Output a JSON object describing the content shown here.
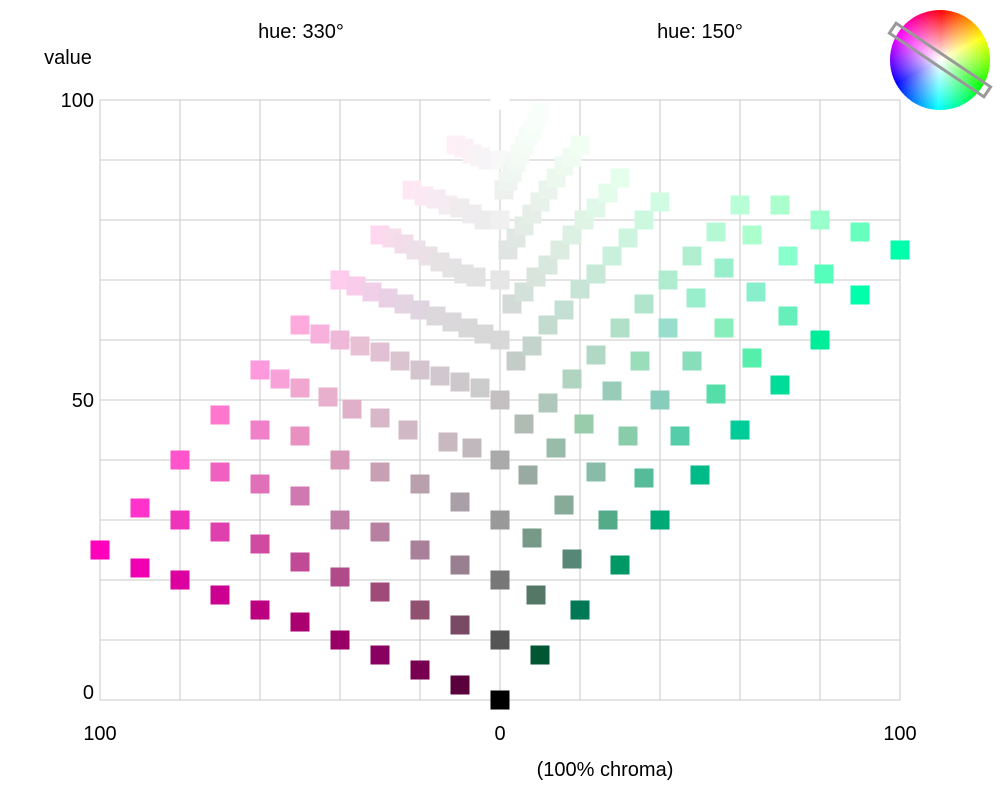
{
  "chart_data": {
    "type": "scatter",
    "left_hue_label": "hue: 330°",
    "right_hue_label": "hue: 150°",
    "ylabel": "value",
    "xlabel": "(100% chroma)",
    "x_tick_labels": [
      {
        "value": -100,
        "label": "100"
      },
      {
        "value": 0,
        "label": "0"
      },
      {
        "value": 100,
        "label": "100"
      }
    ],
    "y_tick_labels": [
      {
        "value": 0,
        "label": "0"
      },
      {
        "value": 50,
        "label": "50"
      },
      {
        "value": 100,
        "label": "100"
      }
    ],
    "xlim": [
      -100,
      100
    ],
    "ylim": [
      0,
      100
    ],
    "grid": true,
    "hue_wheel": {
      "position": "top-right",
      "selected_hues": [
        330,
        150
      ]
    },
    "series": [
      {
        "hue": 330,
        "points": [
          {
            "x": -100,
            "y": 25,
            "color": "#ff00bb"
          },
          {
            "x": -90,
            "y": 22,
            "color": "#f000b0"
          },
          {
            "x": -80,
            "y": 20,
            "color": "#dd00a0"
          },
          {
            "x": -70,
            "y": 17.5,
            "color": "#cc0090"
          },
          {
            "x": -60,
            "y": 15,
            "color": "#bb0080"
          },
          {
            "x": -50,
            "y": 13,
            "color": "#aa0070"
          },
          {
            "x": -40,
            "y": 10,
            "color": "#990066"
          },
          {
            "x": -30,
            "y": 7.5,
            "color": "#880060"
          },
          {
            "x": -20,
            "y": 5,
            "color": "#770050"
          },
          {
            "x": -10,
            "y": 2.5,
            "color": "#5a003c"
          },
          {
            "x": -90,
            "y": 32,
            "color": "#ff33cc"
          },
          {
            "x": -80,
            "y": 30,
            "color": "#f033bb"
          },
          {
            "x": -70,
            "y": 28,
            "color": "#e040ad"
          },
          {
            "x": -60,
            "y": 26,
            "color": "#d04aa0"
          },
          {
            "x": -50,
            "y": 23,
            "color": "#c04a95"
          },
          {
            "x": -40,
            "y": 20.5,
            "color": "#b04a88"
          },
          {
            "x": -30,
            "y": 18,
            "color": "#a04a7a"
          },
          {
            "x": -20,
            "y": 15,
            "color": "#905070"
          },
          {
            "x": -10,
            "y": 12.5,
            "color": "#7a4a65"
          },
          {
            "x": -80,
            "y": 40,
            "color": "#ff55cc"
          },
          {
            "x": -70,
            "y": 38,
            "color": "#f060c0"
          },
          {
            "x": -60,
            "y": 36,
            "color": "#e070b8"
          },
          {
            "x": -50,
            "y": 34,
            "color": "#d078b0"
          },
          {
            "x": -40,
            "y": 30,
            "color": "#c080a8"
          },
          {
            "x": -30,
            "y": 28,
            "color": "#b880a0"
          },
          {
            "x": -20,
            "y": 25,
            "color": "#a8809a"
          },
          {
            "x": -10,
            "y": 22.5,
            "color": "#988090"
          },
          {
            "x": -70,
            "y": 47.5,
            "color": "#ff77cc"
          },
          {
            "x": -60,
            "y": 45,
            "color": "#f080c8"
          },
          {
            "x": -50,
            "y": 44,
            "color": "#e890c0"
          },
          {
            "x": -40,
            "y": 40,
            "color": "#d898b8"
          },
          {
            "x": -30,
            "y": 38,
            "color": "#c8a0b4"
          },
          {
            "x": -20,
            "y": 36,
            "color": "#b8a0ac"
          },
          {
            "x": -10,
            "y": 33,
            "color": "#a8a0a6"
          },
          {
            "x": -60,
            "y": 55,
            "color": "#ff99dd"
          },
          {
            "x": -55,
            "y": 53.5,
            "color": "#f8a0d8"
          },
          {
            "x": -50,
            "y": 52,
            "color": "#f0a8d0"
          },
          {
            "x": -43,
            "y": 50.5,
            "color": "#e8b0cc"
          },
          {
            "x": -37,
            "y": 48.5,
            "color": "#e0b0c8"
          },
          {
            "x": -30,
            "y": 47,
            "color": "#d8b8c8"
          },
          {
            "x": -23,
            "y": 45,
            "color": "#d0b8c4"
          },
          {
            "x": -13,
            "y": 43,
            "color": "#c8b8c0"
          },
          {
            "x": -7,
            "y": 42,
            "color": "#c0b8bc"
          },
          {
            "x": -50,
            "y": 62.5,
            "color": "#ffaadd"
          },
          {
            "x": -45,
            "y": 61,
            "color": "#f8b0dc"
          },
          {
            "x": -40,
            "y": 60,
            "color": "#f0b8d8"
          },
          {
            "x": -35,
            "y": 59,
            "color": "#e8c0d4"
          },
          {
            "x": -30,
            "y": 58,
            "color": "#e0c0d2"
          },
          {
            "x": -25,
            "y": 56.5,
            "color": "#dac4d0"
          },
          {
            "x": -20,
            "y": 55,
            "color": "#d4c4ce"
          },
          {
            "x": -15,
            "y": 54,
            "color": "#d0c8ce"
          },
          {
            "x": -10,
            "y": 53,
            "color": "#ccc8cc"
          },
          {
            "x": -5,
            "y": 52,
            "color": "#cccccc"
          },
          {
            "x": -40,
            "y": 70,
            "color": "#ffccee"
          },
          {
            "x": -36,
            "y": 69,
            "color": "#f8ccea"
          },
          {
            "x": -32,
            "y": 68,
            "color": "#f0d0e8"
          },
          {
            "x": -28,
            "y": 67,
            "color": "#ead0e4"
          },
          {
            "x": -24,
            "y": 66,
            "color": "#e4d4e2"
          },
          {
            "x": -20,
            "y": 65,
            "color": "#e0d4e0"
          },
          {
            "x": -16,
            "y": 64,
            "color": "#dcd8dc"
          },
          {
            "x": -12,
            "y": 63,
            "color": "#dad8da"
          },
          {
            "x": -8,
            "y": 62,
            "color": "#d8d8d8"
          },
          {
            "x": -4,
            "y": 61,
            "color": "#d8d8d8"
          },
          {
            "x": -30,
            "y": 77.5,
            "color": "#ffd8f0"
          },
          {
            "x": -27,
            "y": 77,
            "color": "#f8dcec"
          },
          {
            "x": -24,
            "y": 76,
            "color": "#f2dcea"
          },
          {
            "x": -21,
            "y": 75,
            "color": "#eee0e8"
          },
          {
            "x": -18,
            "y": 74,
            "color": "#eae0e6"
          },
          {
            "x": -15,
            "y": 73,
            "color": "#e6e2e4"
          },
          {
            "x": -12,
            "y": 72,
            "color": "#e4e2e4"
          },
          {
            "x": -9,
            "y": 71,
            "color": "#e2e2e2"
          },
          {
            "x": -6,
            "y": 70.5,
            "color": "#e2e2e2"
          },
          {
            "x": -22,
            "y": 85,
            "color": "#ffe8f4"
          },
          {
            "x": -19,
            "y": 84,
            "color": "#fce8f2"
          },
          {
            "x": -16,
            "y": 83.5,
            "color": "#f8eaf2"
          },
          {
            "x": -13,
            "y": 82.5,
            "color": "#f4ecf0"
          },
          {
            "x": -10,
            "y": 82,
            "color": "#f0ecee"
          },
          {
            "x": -7,
            "y": 81,
            "color": "#eeecee"
          },
          {
            "x": -4,
            "y": 80,
            "color": "#ececec"
          },
          {
            "x": -11,
            "y": 92.5,
            "color": "#fff0f8"
          },
          {
            "x": -9,
            "y": 92,
            "color": "#fcf0f6"
          },
          {
            "x": -7,
            "y": 91,
            "color": "#faf2f6"
          },
          {
            "x": -5,
            "y": 90.5,
            "color": "#f8f4f6"
          },
          {
            "x": -3,
            "y": 90,
            "color": "#f6f4f6"
          },
          {
            "x": 0,
            "y": 100,
            "color": "#ffffff"
          }
        ]
      },
      {
        "hue": 0,
        "points": [
          {
            "x": 0,
            "y": 0,
            "color": "#000000"
          },
          {
            "x": 0,
            "y": 10,
            "color": "#555555"
          },
          {
            "x": 0,
            "y": 20,
            "color": "#777777"
          },
          {
            "x": 0,
            "y": 30,
            "color": "#999999"
          },
          {
            "x": 0,
            "y": 40,
            "color": "#aaaaaa"
          },
          {
            "x": 0,
            "y": 50,
            "color": "#c4c0c2"
          },
          {
            "x": 0,
            "y": 60,
            "color": "#d8d8d8"
          },
          {
            "x": 0,
            "y": 70,
            "color": "#e6e6e6"
          },
          {
            "x": 0,
            "y": 80,
            "color": "#f0f0f0"
          },
          {
            "x": 0,
            "y": 90,
            "color": "#f8f8f8"
          }
        ]
      },
      {
        "hue": 150,
        "points": [
          {
            "x": 10,
            "y": 7.5,
            "color": "#005533"
          },
          {
            "x": 20,
            "y": 15,
            "color": "#007755"
          },
          {
            "x": 30,
            "y": 22.5,
            "color": "#009966"
          },
          {
            "x": 40,
            "y": 30,
            "color": "#00aa77"
          },
          {
            "x": 50,
            "y": 37.5,
            "color": "#00bb88"
          },
          {
            "x": 60,
            "y": 45,
            "color": "#00cc99"
          },
          {
            "x": 70,
            "y": 52.5,
            "color": "#00dd99"
          },
          {
            "x": 80,
            "y": 60,
            "color": "#00ee99"
          },
          {
            "x": 90,
            "y": 67.5,
            "color": "#00ffaa"
          },
          {
            "x": 100,
            "y": 75,
            "color": "#00ffaa"
          },
          {
            "x": 9,
            "y": 17.5,
            "color": "#557766"
          },
          {
            "x": 18,
            "y": 23.5,
            "color": "#558877"
          },
          {
            "x": 27,
            "y": 30,
            "color": "#55aa88"
          },
          {
            "x": 36,
            "y": 37,
            "color": "#55bb99"
          },
          {
            "x": 45,
            "y": 44,
            "color": "#55ccaa"
          },
          {
            "x": 54,
            "y": 51,
            "color": "#55ddaa"
          },
          {
            "x": 63,
            "y": 57,
            "color": "#55eeaa"
          },
          {
            "x": 72,
            "y": 64,
            "color": "#66eebb"
          },
          {
            "x": 81,
            "y": 71,
            "color": "#55ffbb"
          },
          {
            "x": 90,
            "y": 78,
            "color": "#66ffbb"
          },
          {
            "x": 8,
            "y": 27,
            "color": "#779988"
          },
          {
            "x": 16,
            "y": 32.5,
            "color": "#88aa99"
          },
          {
            "x": 24,
            "y": 38,
            "color": "#88bba8"
          },
          {
            "x": 32,
            "y": 44,
            "color": "#88ccaa"
          },
          {
            "x": 40,
            "y": 50,
            "color": "#88ccbb"
          },
          {
            "x": 48,
            "y": 56.5,
            "color": "#88ddbb"
          },
          {
            "x": 56,
            "y": 62,
            "color": "#88eebb"
          },
          {
            "x": 64,
            "y": 68,
            "color": "#88eecc"
          },
          {
            "x": 72,
            "y": 74,
            "color": "#88ffcc"
          },
          {
            "x": 80,
            "y": 80,
            "color": "#99ffcc"
          },
          {
            "x": 7,
            "y": 37.5,
            "color": "#99aaa0"
          },
          {
            "x": 14,
            "y": 42,
            "color": "#99bbaa"
          },
          {
            "x": 21,
            "y": 46,
            "color": "#99ccaa"
          },
          {
            "x": 28,
            "y": 51.5,
            "color": "#99ccb8"
          },
          {
            "x": 35,
            "y": 56.5,
            "color": "#99ddbb"
          },
          {
            "x": 42,
            "y": 62,
            "color": "#99ddcc"
          },
          {
            "x": 49,
            "y": 67,
            "color": "#99eecc"
          },
          {
            "x": 56,
            "y": 72,
            "color": "#99eecc"
          },
          {
            "x": 63,
            "y": 77.5,
            "color": "#aaffcc"
          },
          {
            "x": 70,
            "y": 82.5,
            "color": "#aaffcc"
          },
          {
            "x": 6,
            "y": 46,
            "color": "#b0bbb4"
          },
          {
            "x": 12,
            "y": 49.5,
            "color": "#b0c8bb"
          },
          {
            "x": 18,
            "y": 53.5,
            "color": "#b0d4c0"
          },
          {
            "x": 24,
            "y": 57.5,
            "color": "#b0d8c4"
          },
          {
            "x": 30,
            "y": 62,
            "color": "#b0e0c8"
          },
          {
            "x": 36,
            "y": 66,
            "color": "#b0e4cc"
          },
          {
            "x": 42,
            "y": 70,
            "color": "#b0eccf"
          },
          {
            "x": 48,
            "y": 74,
            "color": "#b0f0d0"
          },
          {
            "x": 54,
            "y": 78,
            "color": "#b4f8d4"
          },
          {
            "x": 60,
            "y": 82.5,
            "color": "#b8ffd8"
          },
          {
            "x": 4,
            "y": 56.5,
            "color": "#c4ccc8"
          },
          {
            "x": 8,
            "y": 59,
            "color": "#c4d4cc"
          },
          {
            "x": 12,
            "y": 62.5,
            "color": "#c4dcd0"
          },
          {
            "x": 16,
            "y": 65,
            "color": "#c4e0d4"
          },
          {
            "x": 20,
            "y": 68.5,
            "color": "#c8e4d6"
          },
          {
            "x": 24,
            "y": 71,
            "color": "#c8e8d8"
          },
          {
            "x": 28,
            "y": 74,
            "color": "#c8f0dc"
          },
          {
            "x": 32,
            "y": 77,
            "color": "#ccf4de"
          },
          {
            "x": 36,
            "y": 80,
            "color": "#ccf8e0"
          },
          {
            "x": 40,
            "y": 83,
            "color": "#d0fce4"
          },
          {
            "x": 3,
            "y": 66,
            "color": "#d4dad8"
          },
          {
            "x": 6,
            "y": 68,
            "color": "#d4e0da"
          },
          {
            "x": 9,
            "y": 70.5,
            "color": "#d8e4dc"
          },
          {
            "x": 12,
            "y": 72.5,
            "color": "#d8e8de"
          },
          {
            "x": 15,
            "y": 75,
            "color": "#dcece0"
          },
          {
            "x": 18,
            "y": 77.5,
            "color": "#dcf0e4"
          },
          {
            "x": 21,
            "y": 80,
            "color": "#e0f4e6"
          },
          {
            "x": 24,
            "y": 82,
            "color": "#e0f8e8"
          },
          {
            "x": 27,
            "y": 84.5,
            "color": "#e4fcec"
          },
          {
            "x": 30,
            "y": 87,
            "color": "#e4ffec"
          },
          {
            "x": 2,
            "y": 75,
            "color": "#e0e4e2"
          },
          {
            "x": 4,
            "y": 77,
            "color": "#e0e8e4"
          },
          {
            "x": 6,
            "y": 79,
            "color": "#e4ece6"
          },
          {
            "x": 8,
            "y": 81,
            "color": "#e6eee8"
          },
          {
            "x": 10,
            "y": 83,
            "color": "#e8f2ea"
          },
          {
            "x": 12,
            "y": 85,
            "color": "#eaf4ec"
          },
          {
            "x": 14,
            "y": 87,
            "color": "#ecf8ee"
          },
          {
            "x": 16,
            "y": 89,
            "color": "#eefaf0"
          },
          {
            "x": 18,
            "y": 90.5,
            "color": "#f0fcf2"
          },
          {
            "x": 20,
            "y": 92.5,
            "color": "#f0fff2"
          },
          {
            "x": 1,
            "y": 85,
            "color": "#eef0ee"
          },
          {
            "x": 2,
            "y": 86.5,
            "color": "#eef4f0"
          },
          {
            "x": 3,
            "y": 88,
            "color": "#f0f6f2"
          },
          {
            "x": 4,
            "y": 89.5,
            "color": "#f2f8f4"
          },
          {
            "x": 5,
            "y": 91,
            "color": "#f4faf4"
          },
          {
            "x": 6,
            "y": 92.5,
            "color": "#f4fcf6"
          },
          {
            "x": 7,
            "y": 94,
            "color": "#f6fdf8"
          },
          {
            "x": 8,
            "y": 95,
            "color": "#f6fef8"
          },
          {
            "x": 9,
            "y": 96.5,
            "color": "#f8fffa"
          },
          {
            "x": 10,
            "y": 98,
            "color": "#f8fffa"
          }
        ]
      }
    ]
  }
}
